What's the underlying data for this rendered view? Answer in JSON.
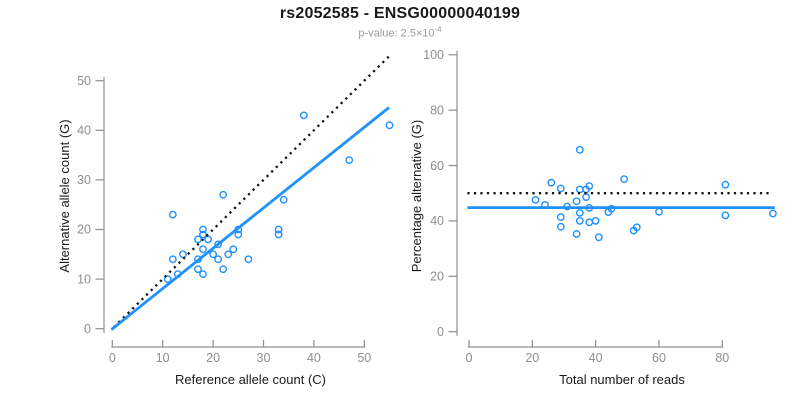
{
  "header": {
    "title": "rs2052585 - ENSG00000040199",
    "subtitle_base": "p-value: 2.5×10",
    "subtitle_sup": "-4"
  },
  "colors": {
    "accent_blue": "#1E90FF",
    "dotted_black": "#111111",
    "axis_gray": "#8f8f8f",
    "tick_label_gray": "#8f8f8f",
    "title_color": "#1a1a1a",
    "subtitle_gray": "#9b9b9b",
    "background": "#ffffff"
  },
  "chart_data": [
    {
      "type": "scatter",
      "name": "allele-count-scatter",
      "title": "",
      "xlabel": "Reference allele count (C)",
      "ylabel": "Alternative allele count (G)",
      "xlim": [
        0,
        55.5
      ],
      "ylim": [
        0,
        55.5
      ],
      "xticks": [
        0,
        10,
        20,
        30,
        40,
        50
      ],
      "yticks": [
        0,
        10,
        20,
        30,
        40,
        50
      ],
      "grid": false,
      "legend": "none",
      "marker": "open-circle",
      "points": [
        [
          11,
          10
        ],
        [
          12,
          14
        ],
        [
          13,
          11
        ],
        [
          14,
          15
        ],
        [
          12,
          23
        ],
        [
          17,
          12
        ],
        [
          17,
          14
        ],
        [
          17,
          18
        ],
        [
          18,
          11
        ],
        [
          18,
          16
        ],
        [
          18,
          19
        ],
        [
          18,
          20
        ],
        [
          19,
          18
        ],
        [
          20,
          15
        ],
        [
          21,
          14
        ],
        [
          21,
          17
        ],
        [
          22,
          12
        ],
        [
          22,
          27
        ],
        [
          23,
          15
        ],
        [
          24,
          16
        ],
        [
          25,
          19
        ],
        [
          25,
          20
        ],
        [
          27,
          14
        ],
        [
          33,
          19
        ],
        [
          33,
          20
        ],
        [
          34,
          26
        ],
        [
          38,
          43
        ],
        [
          47,
          34
        ],
        [
          55,
          41
        ]
      ],
      "lines": [
        {
          "name": "identity-line",
          "style": "dotted",
          "color": "#111111",
          "from": [
            0.3,
            0.3
          ],
          "to": [
            55.2,
            55.2
          ]
        },
        {
          "name": "fit-line",
          "style": "solid",
          "color": "#1E90FF",
          "from": [
            -0.2,
            -0.2
          ],
          "to": [
            54.9,
            44.6
          ]
        }
      ]
    },
    {
      "type": "scatter",
      "name": "percentage-alternative-scatter",
      "title": "",
      "xlabel": "Total number of reads",
      "ylabel": "Percentage alternative (G)",
      "xlim": [
        0,
        97
      ],
      "ylim": [
        0,
        100
      ],
      "xticks": [
        0,
        20,
        40,
        60,
        80
      ],
      "yticks": [
        0,
        20,
        40,
        60,
        80,
        100
      ],
      "grid": false,
      "legend": "none",
      "marker": "open-circle",
      "points": [
        [
          21,
          47.6
        ],
        [
          26,
          53.8
        ],
        [
          24,
          45.8
        ],
        [
          29,
          51.7
        ],
        [
          35,
          65.7
        ],
        [
          29,
          41.4
        ],
        [
          31,
          45.2
        ],
        [
          35,
          51.4
        ],
        [
          29,
          37.9
        ],
        [
          34,
          47.1
        ],
        [
          37,
          51.4
        ],
        [
          38,
          52.6
        ],
        [
          37,
          48.6
        ],
        [
          35,
          42.9
        ],
        [
          35,
          40.0
        ],
        [
          38,
          44.7
        ],
        [
          34,
          35.3
        ],
        [
          49,
          55.1
        ],
        [
          38,
          39.5
        ],
        [
          40,
          40.0
        ],
        [
          44,
          43.2
        ],
        [
          45,
          44.4
        ],
        [
          41,
          34.1
        ],
        [
          52,
          36.5
        ],
        [
          53,
          37.7
        ],
        [
          60,
          43.3
        ],
        [
          81,
          53.1
        ],
        [
          81,
          42.0
        ],
        [
          96,
          42.7
        ]
      ],
      "lines": [
        {
          "name": "expected-50pct-line",
          "style": "dotted",
          "color": "#111111",
          "from": [
            -0.5,
            50
          ],
          "to": [
            95.8,
            50
          ]
        },
        {
          "name": "mean-percentage-line",
          "style": "solid",
          "color": "#1E90FF",
          "from": [
            -0.5,
            44.8
          ],
          "to": [
            96.6,
            44.8
          ]
        }
      ]
    }
  ]
}
